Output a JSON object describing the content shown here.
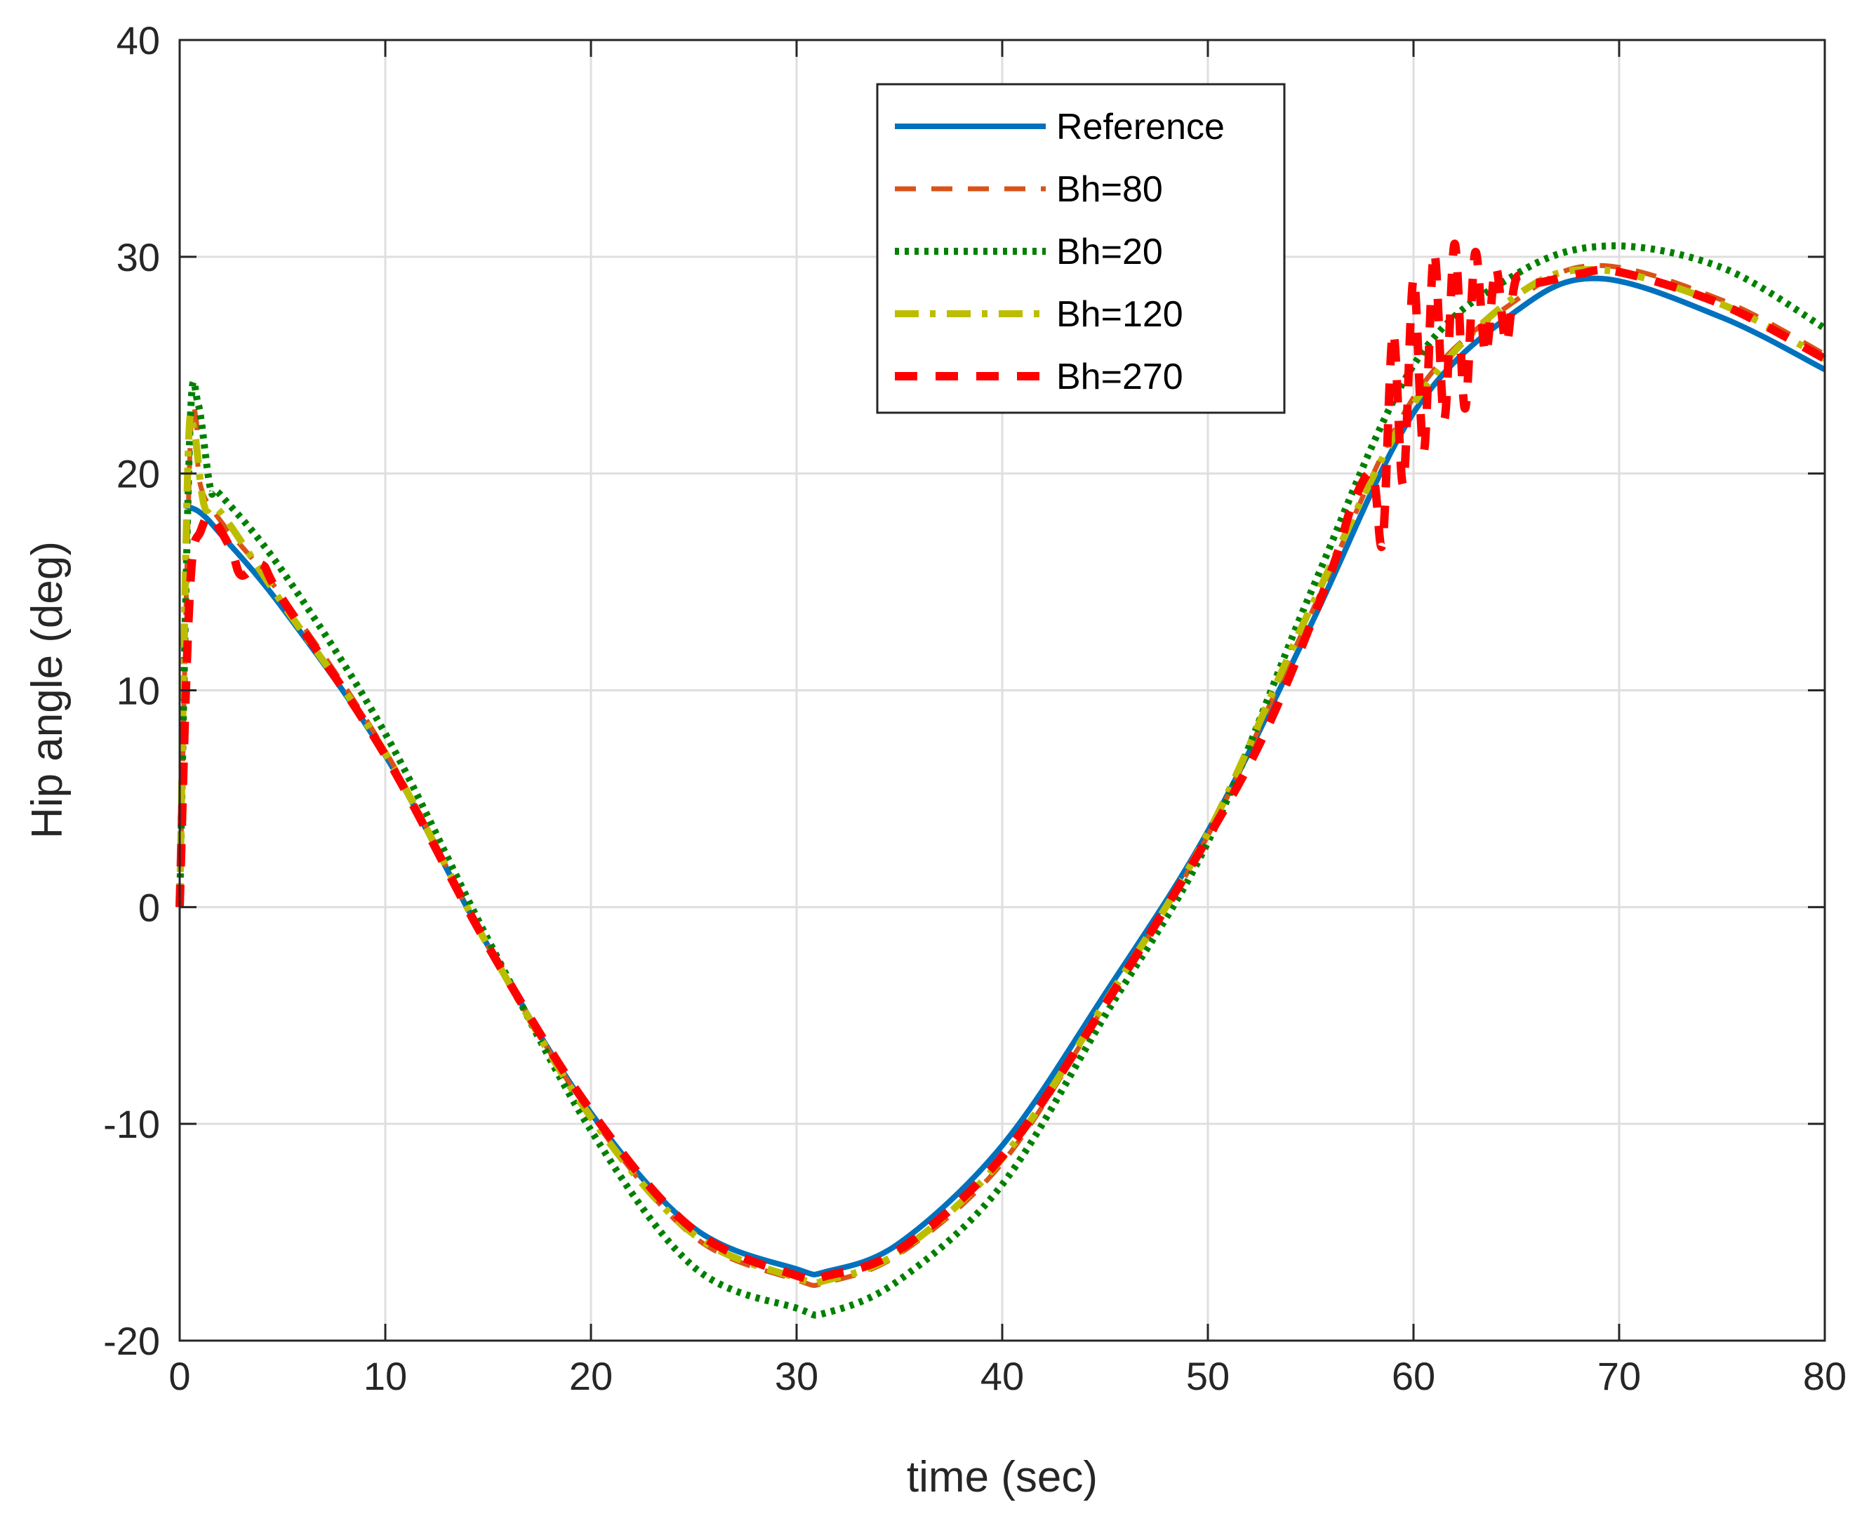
{
  "chart_data": {
    "type": "line",
    "title": "",
    "xlabel": "time (sec)",
    "ylabel": "Hip angle (deg)",
    "xlim": [
      0,
      80
    ],
    "ylim": [
      -20,
      40
    ],
    "xticks": [
      0,
      10,
      20,
      30,
      40,
      50,
      60,
      70,
      80
    ],
    "yticks": [
      -20,
      -10,
      0,
      10,
      20,
      30,
      40
    ],
    "grid": true,
    "legend_location": "top-center",
    "series": [
      {
        "name": "Reference",
        "color": "#0072BD",
        "style": "solid",
        "x": [
          0.3,
          1,
          2,
          5,
          10,
          15,
          20,
          25,
          30,
          31.5,
          35,
          40,
          45,
          50,
          55,
          60,
          65,
          69,
          75,
          80
        ],
        "y": [
          18.5,
          18.2,
          17.2,
          13.8,
          7.0,
          -1.8,
          -9.5,
          -14.8,
          -16.7,
          -16.8,
          -15.5,
          -11.0,
          -4.0,
          3.5,
          13.0,
          22.8,
          27.5,
          29.0,
          27.2,
          24.8
        ]
      },
      {
        "name": "Bh=80",
        "color": "#D95319",
        "style": "dashed",
        "x": [
          0,
          0.5,
          0.8,
          1,
          2,
          5,
          10,
          15,
          20,
          25,
          30,
          31.5,
          35,
          40,
          45,
          50,
          55,
          60,
          65,
          69,
          75,
          80
        ],
        "y": [
          0,
          21,
          22.5,
          19.5,
          17.8,
          14.3,
          7.2,
          -1.8,
          -9.6,
          -15.2,
          -17.2,
          -17.3,
          -16.0,
          -11.8,
          -4.5,
          3.3,
          13.5,
          23.5,
          28.0,
          29.6,
          28.0,
          25.5
        ]
      },
      {
        "name": "Bh=20",
        "color": "#008000",
        "style": "dotted",
        "x": [
          0,
          0.5,
          0.9,
          1.5,
          2,
          5,
          10,
          15,
          20,
          25,
          30,
          31.5,
          35,
          40,
          45,
          50,
          55,
          60,
          65,
          69.5,
          75,
          80
        ],
        "y": [
          0,
          22.0,
          23.2,
          19.3,
          19.0,
          15.5,
          8.0,
          -1.5,
          -10.3,
          -16.6,
          -18.5,
          -18.7,
          -17.2,
          -12.8,
          -5.0,
          3.0,
          14.5,
          25.0,
          29.2,
          30.5,
          29.5,
          26.7
        ]
      },
      {
        "name": "Bh=120",
        "color": "#BDBD00",
        "style": "dashdot",
        "x": [
          0,
          0.4,
          0.7,
          1.2,
          2,
          5,
          10,
          15,
          20,
          25,
          30,
          31.5,
          35,
          40,
          45,
          50,
          55,
          60,
          65,
          69,
          75,
          80
        ],
        "y": [
          0,
          20.5,
          22.0,
          18.5,
          18.2,
          14.0,
          7.1,
          -1.8,
          -9.7,
          -15.1,
          -17.1,
          -17.2,
          -15.9,
          -11.6,
          -4.4,
          3.4,
          13.8,
          23.2,
          28.2,
          29.4,
          27.8,
          25.3
        ]
      },
      {
        "name": "Bh=270",
        "color": "#FF0000",
        "style": "dashed-heavy",
        "x": [
          0,
          0.3,
          0.6,
          1,
          1.5,
          2.5,
          3,
          4,
          5,
          10,
          15,
          20,
          25,
          30,
          31.5,
          35,
          40,
          45,
          50,
          53,
          56,
          57,
          58,
          58.5,
          59,
          59.5,
          60,
          60.5,
          61,
          61.5,
          62,
          62.5,
          63,
          63.5,
          64,
          64.5,
          65,
          66,
          68,
          70,
          75,
          80
        ],
        "y": [
          0,
          10,
          16,
          17.3,
          18.0,
          16.5,
          15.3,
          15.8,
          14.2,
          7.0,
          -1.8,
          -9.4,
          -14.9,
          -17.0,
          -17.0,
          -15.8,
          -11.5,
          -4.5,
          3.2,
          8.5,
          15.5,
          18.5,
          20.0,
          16.8,
          26.5,
          19.5,
          29.0,
          21.0,
          30.2,
          22.5,
          30.6,
          23.0,
          30.2,
          25.5,
          29.5,
          26.0,
          29.0,
          28.8,
          29.2,
          29.3,
          27.8,
          25.3
        ]
      }
    ]
  }
}
